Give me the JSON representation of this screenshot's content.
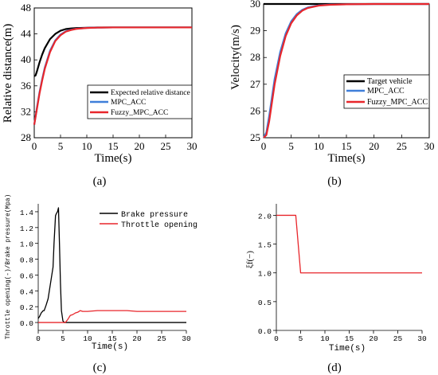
{
  "chart_data": [
    {
      "type": "line",
      "panel_label": "(a)",
      "xlabel": "Time(s)",
      "ylabel": "Relative distance(m)",
      "xlim": [
        0,
        30
      ],
      "ylim": [
        28,
        48
      ],
      "xticks": [
        "0",
        "5",
        "10",
        "15",
        "20",
        "25",
        "30"
      ],
      "yticks": [
        "28",
        "32",
        "36",
        "40",
        "44",
        "48"
      ],
      "legend_position": "bottom-right",
      "series": [
        {
          "name": "Expected relative distance",
          "color": "#000000",
          "x": [
            0,
            0.25,
            0.5,
            1,
            1.5,
            2,
            3,
            4,
            5,
            6,
            7,
            8,
            10,
            12,
            15,
            20,
            25,
            30
          ],
          "y": [
            37.5,
            37.6,
            38.2,
            39.6,
            40.8,
            41.8,
            43.2,
            44.0,
            44.5,
            44.75,
            44.85,
            44.9,
            44.95,
            45.0,
            45.0,
            45.0,
            45.0,
            45.0
          ]
        },
        {
          "name": "MPC_ACC",
          "color": "#3f7fd9",
          "x": [
            0,
            0.5,
            1,
            1.5,
            2,
            3,
            4,
            5,
            6,
            7,
            8,
            10,
            12,
            15,
            20,
            25,
            30
          ],
          "y": [
            30.0,
            32.6,
            35.0,
            37.0,
            38.8,
            41.4,
            43.0,
            43.9,
            44.4,
            44.65,
            44.8,
            44.93,
            44.97,
            45.0,
            45.0,
            45.0,
            45.0
          ]
        },
        {
          "name": "Fuzzy_MPC_ACC",
          "color": "#e8262b",
          "x": [
            0,
            0.5,
            1,
            1.5,
            2,
            3,
            4,
            5,
            6,
            7,
            8,
            10,
            12,
            15,
            20,
            25,
            30
          ],
          "y": [
            30.0,
            32.4,
            34.8,
            36.8,
            38.6,
            41.2,
            42.9,
            43.8,
            44.35,
            44.6,
            44.78,
            44.92,
            44.97,
            45.0,
            45.0,
            45.0,
            45.0
          ]
        }
      ]
    },
    {
      "type": "line",
      "panel_label": "(b)",
      "xlabel": "Time(s)",
      "ylabel": "Velocity(m/s)",
      "xlim": [
        0,
        30
      ],
      "ylim": [
        25,
        30
      ],
      "xticks": [
        "0",
        "5",
        "10",
        "15",
        "20",
        "25",
        "30"
      ],
      "yticks": [
        "25",
        "26",
        "27",
        "28",
        "29",
        "30"
      ],
      "legend_position": "bottom-right",
      "series": [
        {
          "name": "Target vehicle",
          "color": "#000000",
          "x": [
            0,
            30
          ],
          "y": [
            30.0,
            30.0
          ]
        },
        {
          "name": "MPC_ACC",
          "color": "#3f7fd9",
          "x": [
            0,
            0.5,
            1,
            1.5,
            2,
            3,
            4,
            5,
            6,
            7,
            8,
            10,
            12,
            15,
            20,
            25,
            30
          ],
          "y": [
            25.0,
            25.2,
            25.8,
            26.5,
            27.2,
            28.2,
            28.9,
            29.35,
            29.62,
            29.78,
            29.87,
            29.95,
            29.98,
            29.99,
            30.0,
            30.0,
            30.0
          ]
        },
        {
          "name": "Fuzzy_MPC_ACC",
          "color": "#e8262b",
          "x": [
            0,
            0.5,
            1,
            1.5,
            2,
            3,
            4,
            5,
            6,
            7,
            8,
            10,
            12,
            15,
            20,
            25,
            30
          ],
          "y": [
            25.0,
            25.1,
            25.6,
            26.3,
            27.0,
            28.05,
            28.8,
            29.28,
            29.57,
            29.75,
            29.85,
            29.94,
            29.97,
            29.99,
            30.0,
            30.0,
            30.0
          ]
        }
      ]
    },
    {
      "type": "line",
      "panel_label": "(c)",
      "xlabel": "Time(s)",
      "ylabel": "Throttle opening(-)/Brake pressure(Mpa)",
      "xlim": [
        0,
        30
      ],
      "ylim": [
        -0.1,
        1.5
      ],
      "xticks": [
        "0",
        "5",
        "10",
        "15",
        "20",
        "25",
        "30"
      ],
      "yticks": [
        "0.0",
        "0.2",
        "0.4",
        "0.6",
        "0.8",
        "1.0",
        "1.2",
        "1.4"
      ],
      "ytick_values": [
        0,
        0.2,
        0.4,
        0.6,
        0.8,
        1.0,
        1.2,
        1.4
      ],
      "legend_position": "top-right",
      "series": [
        {
          "name": "Brake pressure",
          "color": "#000000",
          "x": [
            0,
            0.3,
            0.6,
            1.0,
            1.2,
            1.6,
            2.0,
            2.2,
            2.5,
            2.8,
            3.0,
            3.2,
            3.5,
            3.7,
            3.9,
            4.1,
            4.3,
            4.5,
            4.7,
            5.0,
            5.3,
            10,
            15,
            20,
            25,
            30
          ],
          "y": [
            0.05,
            0.08,
            0.12,
            0.15,
            0.15,
            0.22,
            0.3,
            0.38,
            0.5,
            0.62,
            0.7,
            1.0,
            1.35,
            1.38,
            1.4,
            1.45,
            1.0,
            0.5,
            0.15,
            0.02,
            0.0,
            0.0,
            0.0,
            0.0,
            0.0,
            0.0
          ]
        },
        {
          "name": "Throttle opening",
          "color": "#e8262b",
          "x": [
            0,
            4.5,
            5,
            5.5,
            6,
            6.5,
            7,
            7.5,
            8,
            8.5,
            9,
            10,
            12,
            15,
            18,
            20,
            22,
            25,
            30
          ],
          "y": [
            0.0,
            0.0,
            0.0,
            0.0,
            0.04,
            0.09,
            0.1,
            0.12,
            0.13,
            0.15,
            0.14,
            0.14,
            0.15,
            0.15,
            0.15,
            0.14,
            0.14,
            0.14,
            0.14
          ]
        }
      ]
    },
    {
      "type": "line",
      "panel_label": "(d)",
      "xlabel": "Time(s)",
      "ylabel": "ξf(−)",
      "xlim": [
        0,
        30
      ],
      "ylim": [
        0,
        2.2
      ],
      "xticks": [
        "0",
        "5",
        "10",
        "15",
        "20",
        "25",
        "30"
      ],
      "yticks": [
        "0.0",
        "0.5",
        "1.0",
        "1.5",
        "2.0"
      ],
      "ytick_values": [
        0,
        0.5,
        1.0,
        1.5,
        2.0
      ],
      "series": [
        {
          "color": "#e8262b",
          "x": [
            0,
            4,
            5,
            30
          ],
          "y": [
            2.0,
            2.0,
            1.0,
            1.0
          ]
        }
      ]
    }
  ]
}
